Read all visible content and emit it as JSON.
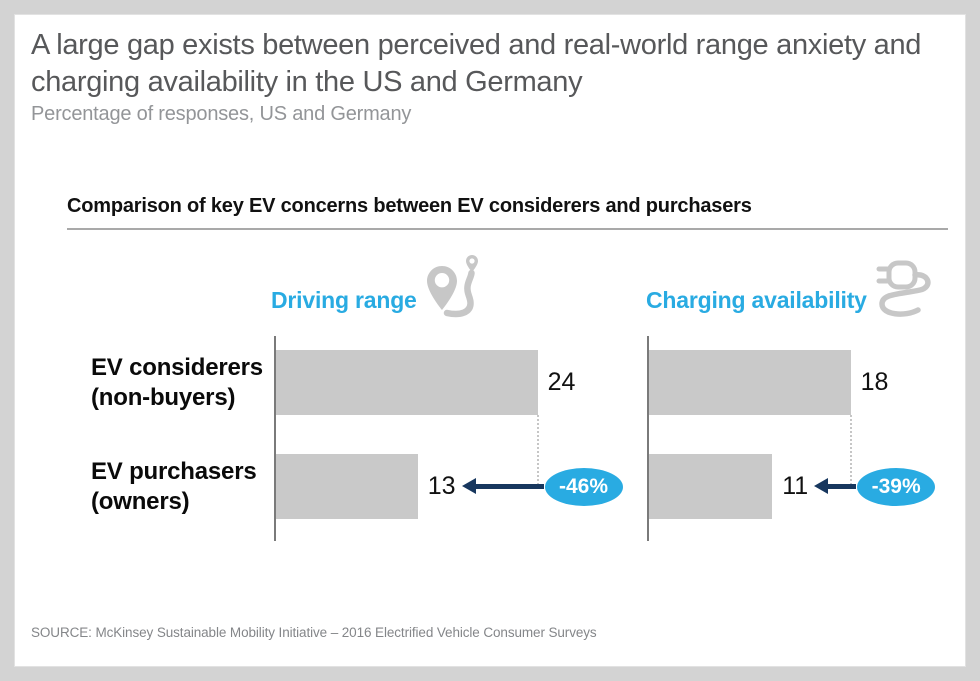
{
  "page": {
    "title_lines": [
      "A large gap exists between perceived and real-world range anxiety and",
      "charging availability in the US and Germany"
    ],
    "subtitle": "Percentage of responses, US and Germany",
    "source": "SOURCE: McKinsey Sustainable Mobility Initiative – 2016 Electrified Vehicle Consumer Surveys"
  },
  "chart_data": {
    "type": "bar",
    "orientation": "horizontal",
    "title": "Comparison of key EV concerns between EV considerers and purchasers",
    "categories": [
      {
        "line1": "EV considerers",
        "line2": "(non-buyers)"
      },
      {
        "line1": "EV purchasers",
        "line2": "(owners)"
      }
    ],
    "groups": [
      {
        "label": "Driving range",
        "icon": "route-pin-icon",
        "values": [
          24,
          13
        ],
        "delta_label": "-46%"
      },
      {
        "label": "Charging availability",
        "icon": "charging-plug-icon",
        "values": [
          18,
          11
        ],
        "delta_label": "-39%"
      }
    ],
    "xlim": [
      0,
      26
    ],
    "grid": false,
    "legend": "none",
    "colors": {
      "bar": "#c9c9c9",
      "accent_blue": "#29abe2",
      "arrow_navy": "#17375e",
      "axis": "#7a7a7a"
    }
  }
}
